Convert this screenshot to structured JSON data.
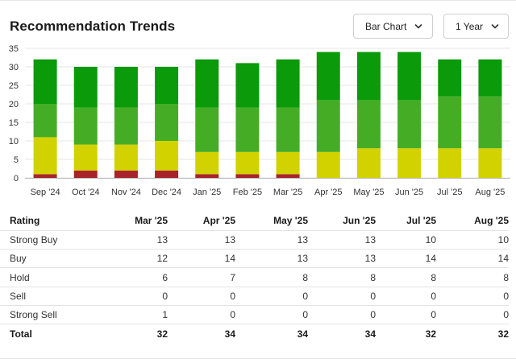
{
  "header": {
    "title": "Recommendation Trends",
    "chart_type_label": "Bar Chart",
    "range_label": "1 Year"
  },
  "colors": {
    "strong_buy": "#0a9a0a",
    "buy": "#45ad25",
    "hold": "#d2d200",
    "sell": "#e07020",
    "strong_sell": "#a8232a",
    "grid": "#e6e6e6",
    "axis_text": "#333333"
  },
  "chart_data": {
    "type": "bar",
    "stacked": true,
    "categories": [
      "Sep '24",
      "Oct '24",
      "Nov '24",
      "Dec '24",
      "Jan '25",
      "Feb '25",
      "Mar '25",
      "Apr '25",
      "May '25",
      "Jun '25",
      "Jul '25",
      "Aug '25"
    ],
    "series": [
      {
        "key": "strong_sell",
        "values": [
          1,
          2,
          2,
          2,
          1,
          1,
          1,
          0,
          0,
          0,
          0,
          0
        ]
      },
      {
        "key": "sell",
        "values": [
          0,
          0,
          0,
          0,
          0,
          0,
          0,
          0,
          0,
          0,
          0,
          0
        ]
      },
      {
        "key": "hold",
        "values": [
          10,
          7,
          7,
          8,
          6,
          6,
          6,
          7,
          8,
          8,
          8,
          8
        ]
      },
      {
        "key": "buy",
        "values": [
          9,
          10,
          10,
          10,
          12,
          12,
          12,
          14,
          13,
          13,
          14,
          14
        ]
      },
      {
        "key": "strong_buy",
        "values": [
          12,
          11,
          11,
          10,
          13,
          12,
          13,
          13,
          13,
          13,
          10,
          10
        ]
      }
    ],
    "ylim": [
      0,
      35
    ],
    "yticks": [
      0,
      5,
      10,
      15,
      20,
      25,
      30,
      35
    ],
    "grid": true,
    "legend": "none"
  },
  "table": {
    "columns": [
      "Rating",
      "Mar '25",
      "Apr '25",
      "May '25",
      "Jun '25",
      "Jul '25",
      "Aug '25"
    ],
    "rows": [
      {
        "label": "Strong Buy",
        "values": [
          "13",
          "13",
          "13",
          "13",
          "10",
          "10"
        ]
      },
      {
        "label": "Buy",
        "values": [
          "12",
          "14",
          "13",
          "13",
          "14",
          "14"
        ]
      },
      {
        "label": "Hold",
        "values": [
          "6",
          "7",
          "8",
          "8",
          "8",
          "8"
        ]
      },
      {
        "label": "Sell",
        "values": [
          "0",
          "0",
          "0",
          "0",
          "0",
          "0"
        ]
      },
      {
        "label": "Strong Sell",
        "values": [
          "1",
          "0",
          "0",
          "0",
          "0",
          "0"
        ]
      }
    ],
    "total": {
      "label": "Total",
      "values": [
        "32",
        "34",
        "34",
        "34",
        "32",
        "32"
      ]
    }
  }
}
